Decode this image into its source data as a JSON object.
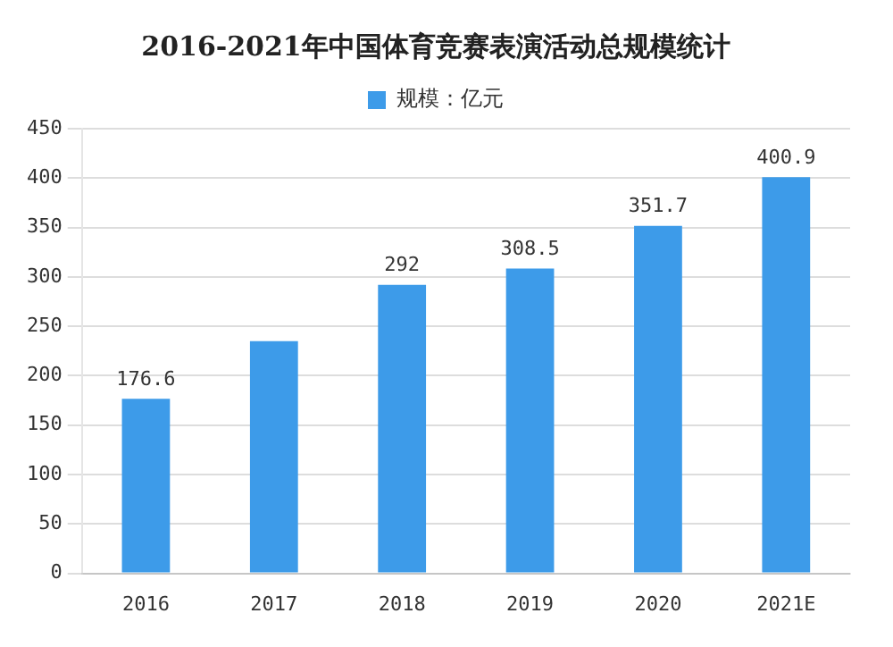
{
  "chart_data": {
    "type": "bar",
    "title": "2016-2021年中国体育竞赛表演活动总规模统计",
    "categories": [
      "2016",
      "2017",
      "2018",
      "2019",
      "2020",
      "2021E"
    ],
    "series": [
      {
        "name": "规模：亿元",
        "color": "#3d9be9",
        "values": [
          176.6,
          235,
          292,
          308.5,
          351.7,
          400.9
        ],
        "value_labels": [
          "176.6",
          null,
          "292",
          "308.5",
          "351.7",
          "400.9"
        ]
      }
    ],
    "ylim": [
      0,
      450
    ],
    "yticks": [
      0,
      50,
      100,
      150,
      200,
      250,
      300,
      350,
      400,
      450
    ],
    "grid": "y",
    "legend": "top"
  }
}
